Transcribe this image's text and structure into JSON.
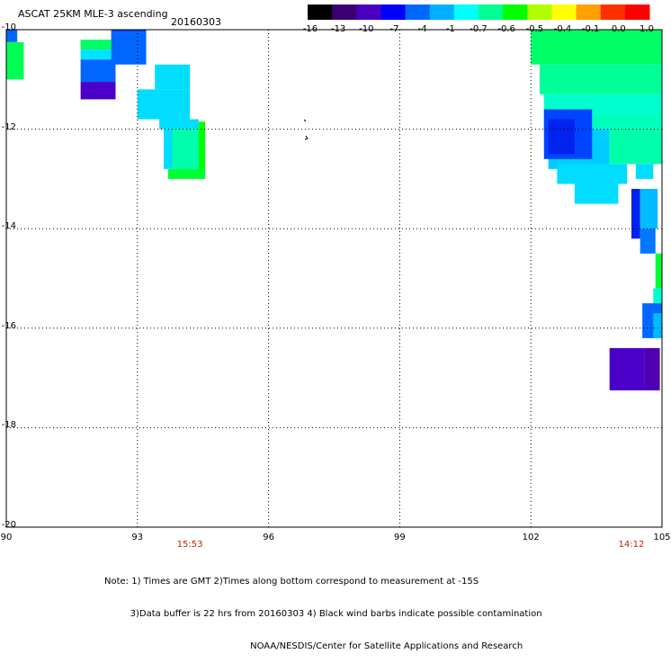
{
  "title": "ASCAT 25KM MLE-3 ascending",
  "date": "20160303",
  "colorbar": {
    "labels": [
      "-16",
      "-13",
      "-10",
      "-7",
      "-4",
      "-1",
      "-0.7",
      "-0.6",
      "-0.5",
      "-0.4",
      "-0.1",
      "0.0",
      "1.0"
    ],
    "colors": [
      "#000000",
      "#3a0070",
      "#4b00c0",
      "#0000ff",
      "#0068ff",
      "#00b0ff",
      "#00ffff",
      "#00ff90",
      "#00ff00",
      "#b0ff00",
      "#ffff00",
      "#ffa000",
      "#ff3000",
      "#ff0000"
    ]
  },
  "axes": {
    "lon": {
      "min": 90,
      "max": 105,
      "ticks": [
        "90",
        "93",
        "96",
        "99",
        "102",
        "105"
      ]
    },
    "lat": {
      "min": -20,
      "max": -10,
      "ticks": [
        "-10",
        "-12",
        "-14",
        "-16",
        "-18",
        "-20"
      ]
    }
  },
  "times": [
    {
      "label": "15:53",
      "lon": 94.2
    },
    {
      "label": "14:12",
      "lon": 104.3
    }
  ],
  "cells": [
    {
      "lon0": 90.0,
      "lat0": -10.0,
      "lon1": 90.25,
      "lat1": -10.25,
      "color": "#0066ff"
    },
    {
      "lon0": 90.0,
      "lat0": -10.25,
      "lon1": 90.4,
      "lat1": -11.0,
      "color": "#00ff55"
    },
    {
      "lon0": 91.7,
      "lat0": -10.2,
      "lon1": 92.5,
      "lat1": -10.4,
      "color": "#00ff66"
    },
    {
      "lon0": 91.7,
      "lat0": -10.4,
      "lon1": 92.5,
      "lat1": -10.6,
      "color": "#00e5ff"
    },
    {
      "lon0": 91.7,
      "lat0": -10.6,
      "lon1": 92.5,
      "lat1": -11.05,
      "color": "#0066ff"
    },
    {
      "lon0": 91.7,
      "lat0": -11.05,
      "lon1": 92.5,
      "lat1": -11.4,
      "color": "#4a00c8"
    },
    {
      "lon0": 92.4,
      "lat0": -10.05,
      "lon1": 93.2,
      "lat1": -10.7,
      "color": "#0066ff"
    },
    {
      "lon0": 92.4,
      "lat0": -10.0,
      "lon1": 93.2,
      "lat1": -10.05,
      "color": "#0044ff"
    },
    {
      "lon0": 93.4,
      "lat0": -10.7,
      "lon1": 94.2,
      "lat1": -11.2,
      "color": "#00ddff"
    },
    {
      "lon0": 93.0,
      "lat0": -11.2,
      "lon1": 94.2,
      "lat1": -11.8,
      "color": "#00ddff"
    },
    {
      "lon0": 93.5,
      "lat0": -11.8,
      "lon1": 94.4,
      "lat1": -12.0,
      "color": "#00ddff"
    },
    {
      "lon0": 93.6,
      "lat0": -12.0,
      "lon1": 94.4,
      "lat1": -12.8,
      "color": "#00ddff"
    },
    {
      "lon0": 93.8,
      "lat0": -12.0,
      "lon1": 94.5,
      "lat1": -12.8,
      "color": "#00ffaa"
    },
    {
      "lon0": 94.4,
      "lat0": -11.85,
      "lon1": 94.55,
      "lat1": -13.0,
      "color": "#00ff00"
    },
    {
      "lon0": 93.7,
      "lat0": -12.8,
      "lon1": 94.55,
      "lat1": -13.0,
      "color": "#00ff33"
    },
    {
      "lon0": 102.0,
      "lat0": -10.0,
      "lon1": 105.0,
      "lat1": -10.7,
      "color": "#00ff66"
    },
    {
      "lon0": 102.2,
      "lat0": -10.7,
      "lon1": 105.0,
      "lat1": -11.3,
      "color": "#00ff99"
    },
    {
      "lon0": 102.3,
      "lat0": -11.3,
      "lon1": 105.0,
      "lat1": -11.7,
      "color": "#00ffcc"
    },
    {
      "lon0": 102.3,
      "lat0": -11.7,
      "lon1": 105.0,
      "lat1": -12.0,
      "color": "#00ffbb"
    },
    {
      "lon0": 102.4,
      "lat0": -12.0,
      "lon1": 103.8,
      "lat1": -12.8,
      "color": "#00ccff"
    },
    {
      "lon0": 103.8,
      "lat0": -12.0,
      "lon1": 105.0,
      "lat1": -12.7,
      "color": "#00ffaa"
    },
    {
      "lon0": 102.3,
      "lat0": -11.6,
      "lon1": 103.4,
      "lat1": -12.6,
      "color": "#0044ff"
    },
    {
      "lon0": 102.4,
      "lat0": -11.8,
      "lon1": 103.0,
      "lat1": -12.5,
      "color": "#0022ee"
    },
    {
      "lon0": 102.6,
      "lat0": -12.7,
      "lon1": 104.2,
      "lat1": -13.1,
      "color": "#00ddff"
    },
    {
      "lon0": 103.0,
      "lat0": -13.1,
      "lon1": 104.0,
      "lat1": -13.5,
      "color": "#00ddff"
    },
    {
      "lon0": 104.4,
      "lat0": -12.7,
      "lon1": 104.8,
      "lat1": -13.0,
      "color": "#00ddff"
    },
    {
      "lon0": 104.3,
      "lat0": -13.2,
      "lon1": 104.5,
      "lat1": -14.2,
      "color": "#0022ee"
    },
    {
      "lon0": 104.5,
      "lat0": -13.2,
      "lon1": 104.9,
      "lat1": -14.0,
      "color": "#00bbff"
    },
    {
      "lon0": 104.5,
      "lat0": -14.0,
      "lon1": 104.85,
      "lat1": -14.5,
      "color": "#0077ff"
    },
    {
      "lon0": 104.85,
      "lat0": -14.5,
      "lon1": 105.0,
      "lat1": -15.2,
      "color": "#00ff33"
    },
    {
      "lon0": 104.8,
      "lat0": -15.2,
      "lon1": 105.0,
      "lat1": -15.5,
      "color": "#00ffcc"
    },
    {
      "lon0": 104.55,
      "lat0": -15.5,
      "lon1": 105.0,
      "lat1": -16.2,
      "color": "#0066ff"
    },
    {
      "lon0": 104.8,
      "lat0": -15.7,
      "lon1": 105.0,
      "lat1": -16.2,
      "color": "#00bbff"
    },
    {
      "lon0": 103.8,
      "lat0": -16.4,
      "lon1": 104.6,
      "lat1": -17.25,
      "color": "#4a00c8"
    },
    {
      "lon0": 104.6,
      "lat0": -16.4,
      "lon1": 104.95,
      "lat1": -17.25,
      "color": "#5000b0"
    }
  ],
  "notes": [
    "Note: 1) Times are GMT 2)Times along bottom correspond to measurement at -15S",
    "         3)Data buffer is 22 hrs from 20160303 4) Black wind barbs indicate possible contamination",
    "                                                   NOAA/NESDIS/Center for Satellite Applications and Research"
  ]
}
